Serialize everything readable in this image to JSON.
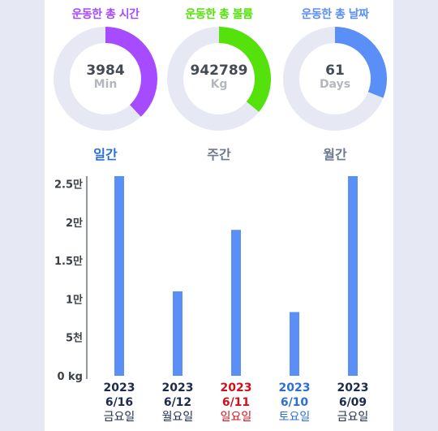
{
  "stats": [
    {
      "title": "운동한 총 시간",
      "value": "3984",
      "unit": "Min",
      "progress": 0.38,
      "color": "#a64bff",
      "track": "#e6e9f4"
    },
    {
      "title": "운동한 총 볼륨",
      "value": "942789",
      "unit": "Kg",
      "progress": 0.36,
      "color": "#55e10c",
      "track": "#e6e9f4"
    },
    {
      "title": "운동한 총 날짜",
      "value": "61",
      "unit": "Days",
      "progress": 0.31,
      "color": "#5a8ff8",
      "track": "#e6e9f4"
    }
  ],
  "tabs": [
    {
      "label": "일간",
      "active": true
    },
    {
      "label": "주간",
      "active": false
    },
    {
      "label": "월간",
      "active": false
    }
  ],
  "chart_data": {
    "type": "bar",
    "ylim": [
      0,
      26000
    ],
    "yticks": [
      {
        "value": 0,
        "label": "0 kg"
      },
      {
        "value": 5000,
        "label": "5천"
      },
      {
        "value": 10000,
        "label": "1만"
      },
      {
        "value": 15000,
        "label": "1.5만"
      },
      {
        "value": 20000,
        "label": "2만"
      },
      {
        "value": 25000,
        "label": "2.5만"
      }
    ],
    "bar_color": "#5a8ff8",
    "categories": [
      {
        "year": "2023",
        "date": "6/16",
        "weekday": "금요일",
        "color": "#1d2a4e"
      },
      {
        "year": "2023",
        "date": "6/12",
        "weekday": "월요일",
        "color": "#1d2a4e"
      },
      {
        "year": "2023",
        "date": "6/11",
        "weekday": "일요일",
        "color": "#d2101b"
      },
      {
        "year": "2023",
        "date": "6/10",
        "weekday": "토요일",
        "color": "#2b6fd6"
      },
      {
        "year": "2023",
        "date": "6/09",
        "weekday": "금요일",
        "color": "#1d2a4e"
      }
    ],
    "values": [
      26000,
      11000,
      19000,
      8300,
      26000
    ]
  }
}
